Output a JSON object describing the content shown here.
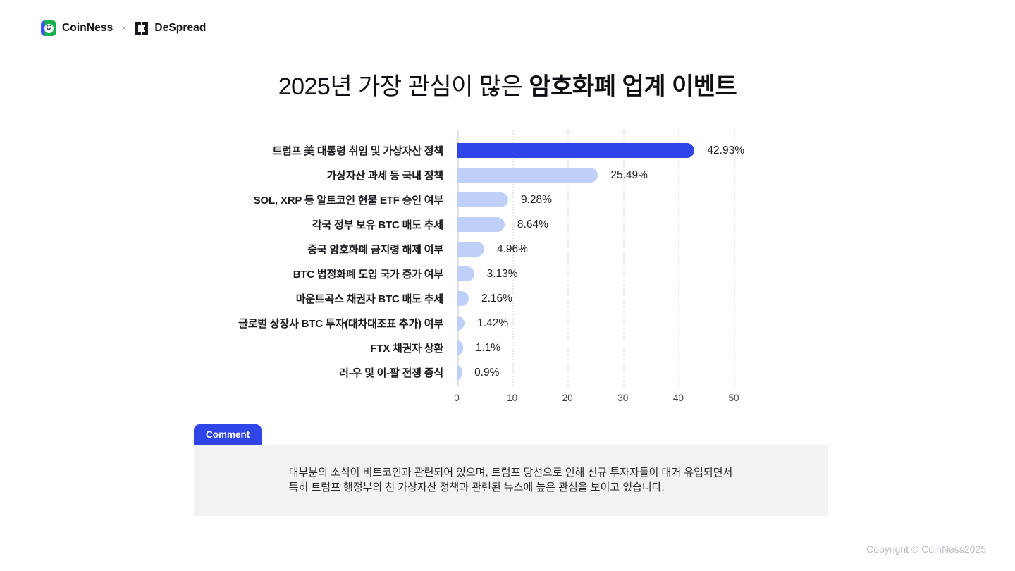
{
  "header": {
    "coinness_label": "CoinNess",
    "cross_symbol": "×",
    "coinness_icon_letter": "C",
    "despread_label": "DeSpread"
  },
  "title": {
    "regular": "2025년 가장 관심이 많은 ",
    "bold": "암호화폐 업계 이벤트"
  },
  "chart_data": {
    "type": "bar",
    "orientation": "horizontal",
    "title": "2025년 가장 관심이 많은 암호화폐 업계 이벤트",
    "categories": [
      "트럼프 美 대통령 취임 및 가상자산 정책",
      "가상자산 과세 등 국내 정책",
      "SOL, XRP 등 알트코인 현물 ETF 승인 여부",
      "각국 정부 보유 BTC 매도 추세",
      "중국 암호화폐 금지령 해제 여부",
      "BTC 법정화폐 도입 국가 증가 여부",
      "마운트곡스 채권자 BTC 매도 추세",
      "글로벌 상장사 BTC 투자(대차대조표 추가) 여부",
      "FTX 채권자 상환",
      "러-우 및 이-팔 전쟁 종식"
    ],
    "values": [
      42.93,
      25.49,
      9.28,
      8.64,
      4.96,
      3.13,
      2.16,
      1.42,
      1.1,
      0.9
    ],
    "value_labels": [
      "42.93%",
      "25.49%",
      "9.28%",
      "8.64%",
      "4.96%",
      "3.13%",
      "2.16%",
      "1.42%",
      "1.1%",
      "0.9%"
    ],
    "xlim": [
      0,
      50
    ],
    "xticks": [
      0,
      10,
      20,
      30,
      40,
      50
    ],
    "grid": "dotted-vertical",
    "legend": "none",
    "highlight_index": 0,
    "highlight_color": "#2F45E8",
    "base_color": "#BFD0F8"
  },
  "comment": {
    "tab_label": "Comment",
    "lines": [
      "대부분의 소식이 비트코인과 관련되어 있으며, 트럼프 당선으로 인해 신규 투자자들이 대거 유입되면서",
      "특히 트럼프 행정부의 친 가상자산 정책과 관련된 뉴스에 높은 관심을 보이고 있습니다."
    ]
  },
  "footer": {
    "copyright": "Copyright © CoinNess2025"
  }
}
